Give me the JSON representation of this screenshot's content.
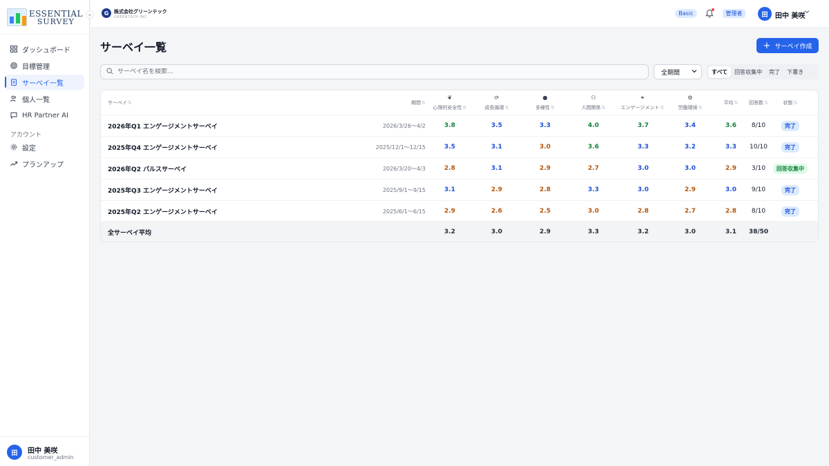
{
  "sidebar": {
    "logo_line1": "ESSENTIAL",
    "logo_line2": "SURVEY",
    "collapse_glyph": "«",
    "items": [
      {
        "label": "ダッシュボード",
        "icon": "grid-icon"
      },
      {
        "label": "目標管理",
        "icon": "target-icon"
      },
      {
        "label": "サーベイ一覧",
        "icon": "clipboard-icon"
      },
      {
        "label": "個人一覧",
        "icon": "users-icon"
      },
      {
        "label": "HR Partner AI",
        "icon": "chat-icon"
      }
    ],
    "section_label": "アカウント",
    "account_items": [
      {
        "label": "設定",
        "icon": "gear-icon"
      },
      {
        "label": "プランアップ",
        "icon": "trending-up-icon"
      }
    ],
    "user": {
      "avatar": "田",
      "name": "田中 美咲",
      "role": "customer_admin"
    }
  },
  "header": {
    "company_initial": "G",
    "company_name": "株式会社グリーンテック",
    "company_sub": "GREENTECH INC.",
    "plan_badge": "Basic",
    "role_badge": "管理者",
    "avatar": "田",
    "user_name": "田中 美咲"
  },
  "main": {
    "title": "サーベイ一覧",
    "create_button": "サーベイ作成",
    "search_placeholder": "サーベイ名を検索...",
    "period_selected": "全期間",
    "filter_tabs": [
      "すべて",
      "回答収集中",
      "完了",
      "下書き"
    ],
    "active_filter": "すべて"
  },
  "table": {
    "headers": {
      "survey": "サーベイ",
      "period": "期間",
      "psych": "心理的安全性",
      "growth": "成長循環",
      "diversity": "多様性",
      "relations": "人間関係",
      "engagement": "エンゲージメント",
      "labor": "労働環境",
      "average": "平均",
      "responses": "回答数",
      "status": "状態"
    },
    "rows": [
      {
        "name": "2026年Q1 エンゲージメントサーベイ",
        "period": "2026/3/26〜4/2",
        "psych": "3.8",
        "growth": "3.5",
        "diversity": "3.3",
        "relations": "4.0",
        "engagement": "3.7",
        "labor": "3.4",
        "average": "3.6",
        "responses": "8/10",
        "status": "完了"
      },
      {
        "name": "2025年Q4 エンゲージメントサーベイ",
        "period": "2025/12/1〜12/15",
        "psych": "3.5",
        "growth": "3.1",
        "diversity": "3.0",
        "relations": "3.6",
        "engagement": "3.3",
        "labor": "3.2",
        "average": "3.3",
        "responses": "10/10",
        "status": "完了"
      },
      {
        "name": "2026年Q2 パルスサーベイ",
        "period": "2026/3/20〜4/3",
        "psych": "2.8",
        "growth": "3.1",
        "diversity": "2.9",
        "relations": "2.7",
        "engagement": "3.0",
        "labor": "3.0",
        "average": "2.9",
        "responses": "3/10",
        "status": "回答収集中"
      },
      {
        "name": "2025年Q3 エンゲージメントサーベイ",
        "period": "2025/9/1〜9/15",
        "psych": "3.1",
        "growth": "2.9",
        "diversity": "2.8",
        "relations": "3.3",
        "engagement": "3.0",
        "labor": "2.9",
        "average": "3.0",
        "responses": "9/10",
        "status": "完了"
      },
      {
        "name": "2025年Q2 エンゲージメントサーベイ",
        "period": "2025/6/1〜6/15",
        "psych": "2.9",
        "growth": "2.6",
        "diversity": "2.5",
        "relations": "3.0",
        "engagement": "2.8",
        "labor": "2.7",
        "average": "2.8",
        "responses": "8/10",
        "status": "完了"
      }
    ],
    "summary": {
      "label": "全サーベイ平均",
      "psych": "3.2",
      "growth": "3.0",
      "diversity": "2.9",
      "relations": "3.3",
      "engagement": "3.2",
      "labor": "3.0",
      "average": "3.1",
      "responses": "38/50"
    }
  },
  "colors": {
    "accent": "#2563eb",
    "score_high": "#15803d",
    "score_mid": "#1d4ed8",
    "score_low": "#b45309"
  }
}
